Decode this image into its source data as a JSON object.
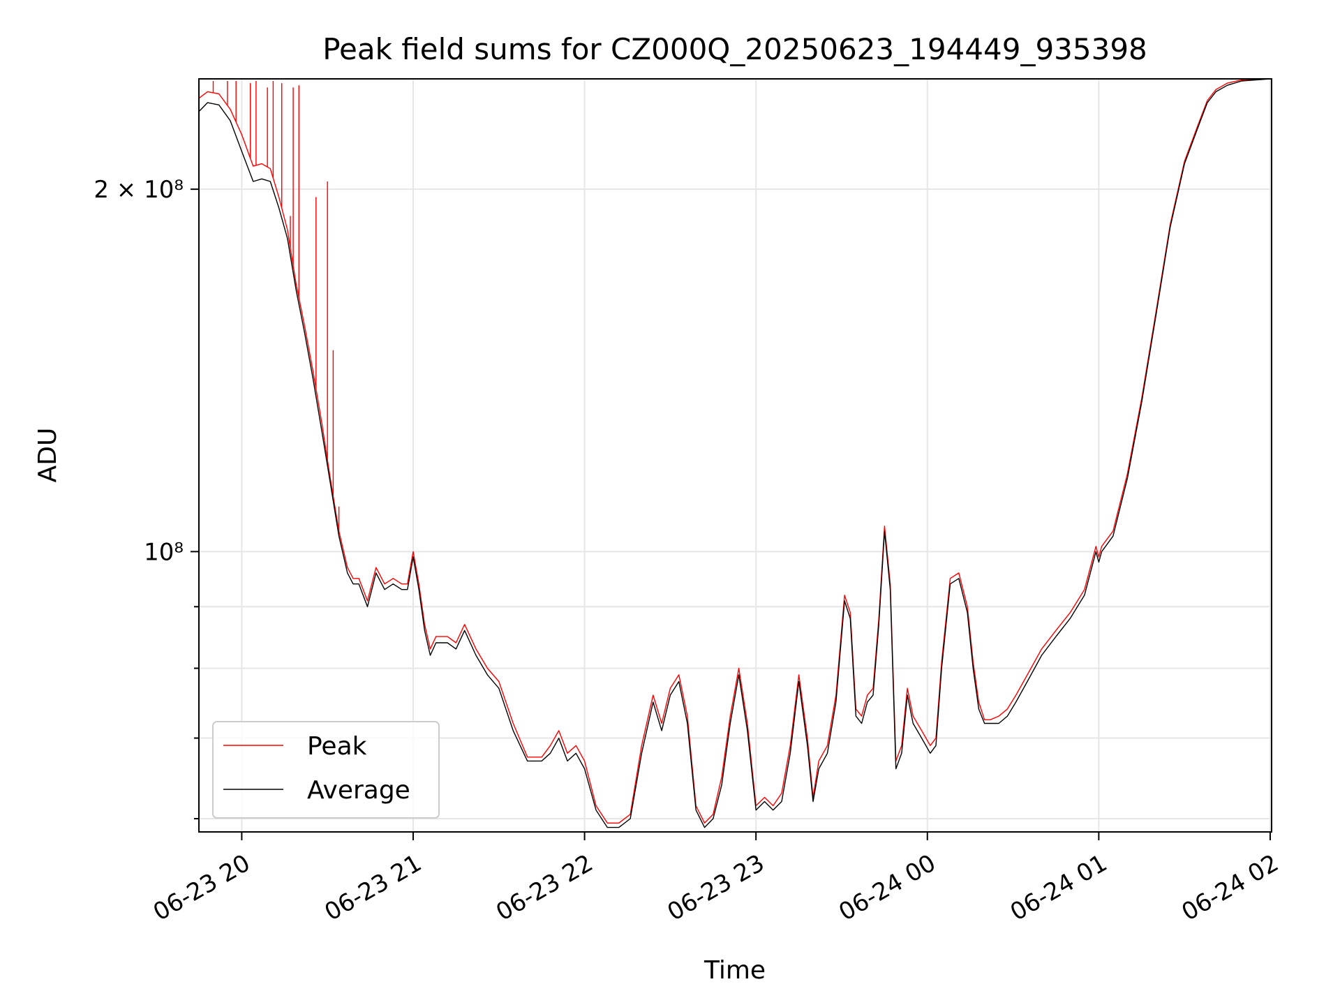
{
  "chart_data": {
    "type": "line",
    "title": "Peak field sums for CZ000Q_20250623_194449_935398",
    "xlabel": "Time",
    "ylabel": "ADU",
    "yscale": "log",
    "ylim": [
      58500000,
      247000000
    ],
    "xlim": [
      "2025-06-23T19:45:00",
      "2025-06-24T02:00:30"
    ],
    "grid": true,
    "legend": {
      "placement": "lower-left",
      "entries": [
        "Peak",
        "Average"
      ]
    },
    "colors": {
      "Peak": "#ff0000",
      "Average": "#000000",
      "grid": "#e6e6e6"
    },
    "x_ticks": [
      "06-23 20",
      "06-23 21",
      "06-23 22",
      "06-23 23",
      "06-24 00",
      "06-24 01",
      "06-24 02"
    ],
    "x_tick_times": [
      "2025-06-23T20:00",
      "2025-06-23T21:00",
      "2025-06-23T22:00",
      "2025-06-23T23:00",
      "2025-06-24T00:00",
      "2025-06-24T01:00",
      "2025-06-24T02:00"
    ],
    "y_ticks": [
      {
        "value": 200000000,
        "label": "2 × 10⁸",
        "major": true
      },
      {
        "value": 100000000,
        "label": "10⁸",
        "major": true
      },
      {
        "value": 90000000,
        "label": "",
        "major": false
      },
      {
        "value": 80000000,
        "label": "",
        "major": false
      },
      {
        "value": 70000000,
        "label": "",
        "major": false
      },
      {
        "value": 60000000,
        "label": "",
        "major": false
      }
    ],
    "series": [
      {
        "name": "Average",
        "x": [
          "2025-06-23T19:45",
          "2025-06-23T19:48",
          "2025-06-23T19:52",
          "2025-06-23T19:56",
          "2025-06-23T20:00",
          "2025-06-23T20:04",
          "2025-06-23T20:07",
          "2025-06-23T20:10",
          "2025-06-23T20:13",
          "2025-06-23T20:16",
          "2025-06-23T20:19",
          "2025-06-23T20:22",
          "2025-06-23T20:25",
          "2025-06-23T20:28",
          "2025-06-23T20:31",
          "2025-06-23T20:34",
          "2025-06-23T20:37",
          "2025-06-23T20:39",
          "2025-06-23T20:41",
          "2025-06-23T20:44",
          "2025-06-23T20:47",
          "2025-06-23T20:50",
          "2025-06-23T20:53",
          "2025-06-23T20:56",
          "2025-06-23T20:58",
          "2025-06-23T21:00",
          "2025-06-23T21:02",
          "2025-06-23T21:04",
          "2025-06-23T21:06",
          "2025-06-23T21:08",
          "2025-06-23T21:12",
          "2025-06-23T21:15",
          "2025-06-23T21:18",
          "2025-06-23T21:22",
          "2025-06-23T21:26",
          "2025-06-23T21:30",
          "2025-06-23T21:35",
          "2025-06-23T21:40",
          "2025-06-23T21:45",
          "2025-06-23T21:48",
          "2025-06-23T21:51",
          "2025-06-23T21:54",
          "2025-06-23T21:57",
          "2025-06-23T22:00",
          "2025-06-23T22:04",
          "2025-06-23T22:08",
          "2025-06-23T22:12",
          "2025-06-23T22:16",
          "2025-06-23T22:20",
          "2025-06-23T22:24",
          "2025-06-23T22:27",
          "2025-06-23T22:30",
          "2025-06-23T22:33",
          "2025-06-23T22:36",
          "2025-06-23T22:39",
          "2025-06-23T22:42",
          "2025-06-23T22:45",
          "2025-06-23T22:48",
          "2025-06-23T22:51",
          "2025-06-23T22:54",
          "2025-06-23T22:57",
          "2025-06-23T23:00",
          "2025-06-23T23:03",
          "2025-06-23T23:06",
          "2025-06-23T23:09",
          "2025-06-23T23:12",
          "2025-06-23T23:15",
          "2025-06-23T23:18",
          "2025-06-23T23:20",
          "2025-06-23T23:22",
          "2025-06-23T23:25",
          "2025-06-23T23:28",
          "2025-06-23T23:31",
          "2025-06-23T23:33",
          "2025-06-23T23:35",
          "2025-06-23T23:37",
          "2025-06-23T23:39",
          "2025-06-23T23:41",
          "2025-06-23T23:43",
          "2025-06-23T23:45",
          "2025-06-23T23:47",
          "2025-06-23T23:49",
          "2025-06-23T23:51",
          "2025-06-23T23:53",
          "2025-06-23T23:55",
          "2025-06-23T23:58",
          "2025-06-24T00:01",
          "2025-06-24T00:03",
          "2025-06-24T00:05",
          "2025-06-24T00:08",
          "2025-06-24T00:11",
          "2025-06-24T00:14",
          "2025-06-24T00:16",
          "2025-06-24T00:18",
          "2025-06-24T00:20",
          "2025-06-24T00:22",
          "2025-06-24T00:25",
          "2025-06-24T00:28",
          "2025-06-24T00:31",
          "2025-06-24T00:35",
          "2025-06-24T00:40",
          "2025-06-24T00:45",
          "2025-06-24T00:50",
          "2025-06-24T00:55",
          "2025-06-24T00:59",
          "2025-06-24T01:00",
          "2025-06-24T01:01",
          "2025-06-24T01:05",
          "2025-06-24T01:10",
          "2025-06-24T01:15",
          "2025-06-24T01:20",
          "2025-06-24T01:25",
          "2025-06-24T01:30",
          "2025-06-24T01:35",
          "2025-06-24T01:38",
          "2025-06-24T01:41",
          "2025-06-24T01:45",
          "2025-06-24T01:50",
          "2025-06-24T02:00"
        ],
        "values": [
          232000000,
          236000000,
          235000000,
          228000000,
          215000000,
          203000000,
          204000000,
          203000000,
          193000000,
          182000000,
          165000000,
          152000000,
          139000000,
          126000000,
          114000000,
          103000000,
          96000000,
          94000000,
          94000000,
          90000000,
          96000000,
          93000000,
          94000000,
          93000000,
          93000000,
          99000000,
          93000000,
          86000000,
          82000000,
          84000000,
          84000000,
          83000000,
          86000000,
          82000000,
          79000000,
          77000000,
          71000000,
          67000000,
          67000000,
          68000000,
          70000000,
          67000000,
          68000000,
          66000000,
          61000000,
          59000000,
          59000000,
          60000000,
          68000000,
          75000000,
          71000000,
          76000000,
          78000000,
          72000000,
          61000000,
          59000000,
          60000000,
          64000000,
          72000000,
          79000000,
          71000000,
          61000000,
          62000000,
          61000000,
          62000000,
          68000000,
          78000000,
          69000000,
          62000000,
          66000000,
          68000000,
          75000000,
          91000000,
          88000000,
          73000000,
          72000000,
          75000000,
          76000000,
          87000000,
          104000000,
          93000000,
          66000000,
          68000000,
          76000000,
          72000000,
          70000000,
          68000000,
          69000000,
          80000000,
          94000000,
          95000000,
          89000000,
          80000000,
          74000000,
          72000000,
          72000000,
          72000000,
          73000000,
          75000000,
          78000000,
          82000000,
          85000000,
          88000000,
          92000000,
          100000000,
          98000000,
          100000000,
          103000000,
          115000000,
          133000000,
          157000000,
          186000000,
          210000000,
          226000000,
          236000000,
          241000000,
          244000000,
          246000000,
          247000000
        ]
      },
      {
        "name": "Peak",
        "x": [
          "2025-06-23T19:45",
          "2025-06-23T19:48",
          "2025-06-23T19:52",
          "2025-06-23T19:56",
          "2025-06-23T20:00",
          "2025-06-23T20:04",
          "2025-06-23T20:07",
          "2025-06-23T20:10",
          "2025-06-23T20:13",
          "2025-06-23T20:16",
          "2025-06-23T20:19",
          "2025-06-23T20:22",
          "2025-06-23T20:25",
          "2025-06-23T20:28",
          "2025-06-23T20:31",
          "2025-06-23T20:34",
          "2025-06-23T20:37",
          "2025-06-23T20:39",
          "2025-06-23T20:41",
          "2025-06-23T20:44",
          "2025-06-23T20:47",
          "2025-06-23T20:50",
          "2025-06-23T20:53",
          "2025-06-23T20:56",
          "2025-06-23T20:58",
          "2025-06-23T21:00",
          "2025-06-23T21:02",
          "2025-06-23T21:04",
          "2025-06-23T21:06",
          "2025-06-23T21:08",
          "2025-06-23T21:12",
          "2025-06-23T21:15",
          "2025-06-23T21:18",
          "2025-06-23T21:22",
          "2025-06-23T21:26",
          "2025-06-23T21:30",
          "2025-06-23T21:35",
          "2025-06-23T21:40",
          "2025-06-23T21:45",
          "2025-06-23T21:48",
          "2025-06-23T21:51",
          "2025-06-23T21:54",
          "2025-06-23T21:57",
          "2025-06-23T22:00",
          "2025-06-23T22:04",
          "2025-06-23T22:08",
          "2025-06-23T22:12",
          "2025-06-23T22:16",
          "2025-06-23T22:20",
          "2025-06-23T22:24",
          "2025-06-23T22:27",
          "2025-06-23T22:30",
          "2025-06-23T22:33",
          "2025-06-23T22:36",
          "2025-06-23T22:39",
          "2025-06-23T22:42",
          "2025-06-23T22:45",
          "2025-06-23T22:48",
          "2025-06-23T22:51",
          "2025-06-23T22:54",
          "2025-06-23T22:57",
          "2025-06-23T23:00",
          "2025-06-23T23:03",
          "2025-06-23T23:06",
          "2025-06-23T23:09",
          "2025-06-23T23:12",
          "2025-06-23T23:15",
          "2025-06-23T23:18",
          "2025-06-23T23:20",
          "2025-06-23T23:22",
          "2025-06-23T23:25",
          "2025-06-23T23:28",
          "2025-06-23T23:31",
          "2025-06-23T23:33",
          "2025-06-23T23:35",
          "2025-06-23T23:37",
          "2025-06-23T23:39",
          "2025-06-23T23:41",
          "2025-06-23T23:43",
          "2025-06-23T23:45",
          "2025-06-23T23:47",
          "2025-06-23T23:49",
          "2025-06-23T23:51",
          "2025-06-23T23:53",
          "2025-06-23T23:55",
          "2025-06-23T23:58",
          "2025-06-24T00:01",
          "2025-06-24T00:03",
          "2025-06-24T00:05",
          "2025-06-24T00:08",
          "2025-06-24T00:11",
          "2025-06-24T00:14",
          "2025-06-24T00:16",
          "2025-06-24T00:18",
          "2025-06-24T00:20",
          "2025-06-24T00:22",
          "2025-06-24T00:25",
          "2025-06-24T00:28",
          "2025-06-24T00:31",
          "2025-06-24T00:35",
          "2025-06-24T00:40",
          "2025-06-24T00:45",
          "2025-06-24T00:50",
          "2025-06-24T00:55",
          "2025-06-24T00:59",
          "2025-06-24T01:00",
          "2025-06-24T01:01",
          "2025-06-24T01:05",
          "2025-06-24T01:10",
          "2025-06-24T01:15",
          "2025-06-24T01:20",
          "2025-06-24T01:25",
          "2025-06-24T01:30",
          "2025-06-24T01:35",
          "2025-06-24T01:38",
          "2025-06-24T01:41",
          "2025-06-24T01:45",
          "2025-06-24T01:50",
          "2025-06-24T02:00"
        ],
        "values": [
          238000000,
          241000000,
          240000000,
          233000000,
          222000000,
          209000000,
          210000000,
          208000000,
          197000000,
          185000000,
          167000000,
          154000000,
          141000000,
          128000000,
          115000000,
          104000000,
          97000000,
          95000000,
          95000000,
          91000000,
          97000000,
          94000000,
          95000000,
          94000000,
          94000000,
          100000000,
          94000000,
          87000000,
          83000000,
          85000000,
          85000000,
          84000000,
          87000000,
          83000000,
          80000000,
          78000000,
          72000000,
          67500000,
          67500000,
          69000000,
          71000000,
          68000000,
          69000000,
          67000000,
          61500000,
          59500000,
          59500000,
          60500000,
          69000000,
          76000000,
          72000000,
          77000000,
          79000000,
          73000000,
          61500000,
          59500000,
          60500000,
          65000000,
          73000000,
          80000000,
          72000000,
          61500000,
          62500000,
          61500000,
          63000000,
          69000000,
          79000000,
          70000000,
          62500000,
          67000000,
          69000000,
          76000000,
          92000000,
          89000000,
          74000000,
          73000000,
          76000000,
          77000000,
          88000000,
          105000000,
          94000000,
          67000000,
          69000000,
          77000000,
          73000000,
          71000000,
          69000000,
          70000000,
          81000000,
          95000000,
          96000000,
          90000000,
          81000000,
          75000000,
          72500000,
          72500000,
          73000000,
          74000000,
          76000000,
          79000000,
          83000000,
          86000000,
          89000000,
          93000000,
          101000000,
          99000000,
          101000000,
          104000000,
          116000000,
          134000000,
          158000000,
          187000000,
          211000000,
          227000000,
          237000000,
          242000000,
          245000000,
          246500000,
          247000000
        ],
        "spikes": [
          {
            "x": "2025-06-23T19:50",
            "value": 246000000
          },
          {
            "x": "2025-06-23T19:55",
            "value": 246000000
          },
          {
            "x": "2025-06-23T19:58",
            "value": 246000000
          },
          {
            "x": "2025-06-23T20:03",
            "value": 245000000
          },
          {
            "x": "2025-06-23T20:05",
            "value": 246000000
          },
          {
            "x": "2025-06-23T20:09",
            "value": 243000000
          },
          {
            "x": "2025-06-23T20:11",
            "value": 246000000
          },
          {
            "x": "2025-06-23T20:14",
            "value": 245000000
          },
          {
            "x": "2025-06-23T20:17",
            "value": 190000000
          },
          {
            "x": "2025-06-23T20:18",
            "value": 243000000
          },
          {
            "x": "2025-06-23T20:20",
            "value": 244000000
          },
          {
            "x": "2025-06-23T20:26",
            "value": 197000000
          },
          {
            "x": "2025-06-23T20:30",
            "value": 203000000
          },
          {
            "x": "2025-06-23T20:32",
            "value": 147000000
          },
          {
            "x": "2025-06-23T20:34",
            "value": 109000000
          }
        ]
      }
    ]
  }
}
